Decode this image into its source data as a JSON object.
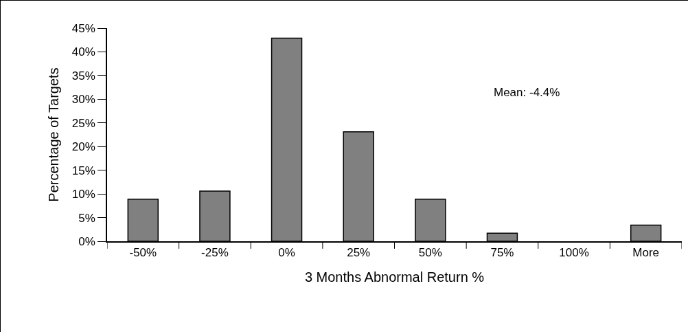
{
  "chart_data": {
    "type": "bar",
    "xlabel": "3 Months Abnormal Return %",
    "ylabel": "Percentage of Targets",
    "categories": [
      "-50%",
      "-25%",
      "0%",
      "25%",
      "50%",
      "75%",
      "100%",
      "More"
    ],
    "values": [
      8.9,
      10.6,
      42.9,
      23.1,
      8.9,
      1.7,
      0,
      3.4
    ],
    "color": "#808080",
    "ylim": [
      0,
      45
    ],
    "yticks": [
      {
        "value": 0,
        "label": "0%"
      },
      {
        "value": 5,
        "label": "5%"
      },
      {
        "value": 10,
        "label": "10%"
      },
      {
        "value": 15,
        "label": "15%"
      },
      {
        "value": 20,
        "label": "20%"
      },
      {
        "value": 25,
        "label": "25%"
      },
      {
        "value": 30,
        "label": "30%"
      },
      {
        "value": 35,
        "label": "35%"
      },
      {
        "value": 40,
        "label": "40%"
      },
      {
        "value": 45,
        "label": "45%"
      }
    ],
    "annotations": [
      "Mean: -4.4%"
    ]
  }
}
